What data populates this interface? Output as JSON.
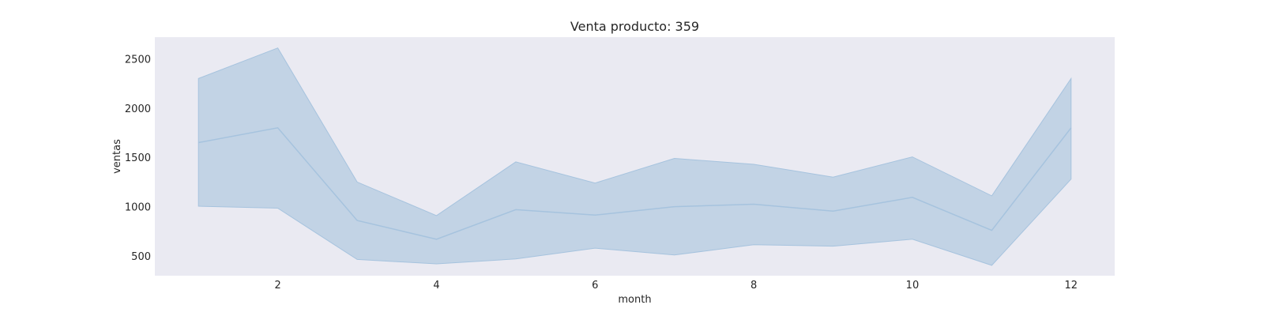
{
  "chart_data": {
    "type": "area",
    "title": "Venta producto: 359",
    "xlabel": "month",
    "ylabel": "ventas",
    "xlim": [
      0.45,
      12.55
    ],
    "ylim": [
      300,
      2720
    ],
    "xticks": [
      2,
      4,
      6,
      8,
      10,
      12
    ],
    "yticks": [
      500,
      1000,
      1500,
      2000,
      2500
    ],
    "grid": false,
    "background_color": "#EAEAF2",
    "line_color": "#A6C3DE",
    "band_color": "#C2D3E5",
    "x": [
      1,
      2,
      3,
      4,
      5,
      6,
      7,
      8,
      9,
      10,
      11,
      12
    ],
    "series": [
      {
        "mean": [
          1650,
          1800,
          860,
          670,
          970,
          915,
          1000,
          1025,
          955,
          1095,
          760,
          1800
        ],
        "upper": [
          2300,
          2610,
          1250,
          910,
          1455,
          1240,
          1490,
          1430,
          1300,
          1505,
          1110,
          2300
        ],
        "lower": [
          1005,
          985,
          465,
          420,
          470,
          580,
          510,
          615,
          600,
          670,
          405,
          1280
        ]
      }
    ]
  }
}
